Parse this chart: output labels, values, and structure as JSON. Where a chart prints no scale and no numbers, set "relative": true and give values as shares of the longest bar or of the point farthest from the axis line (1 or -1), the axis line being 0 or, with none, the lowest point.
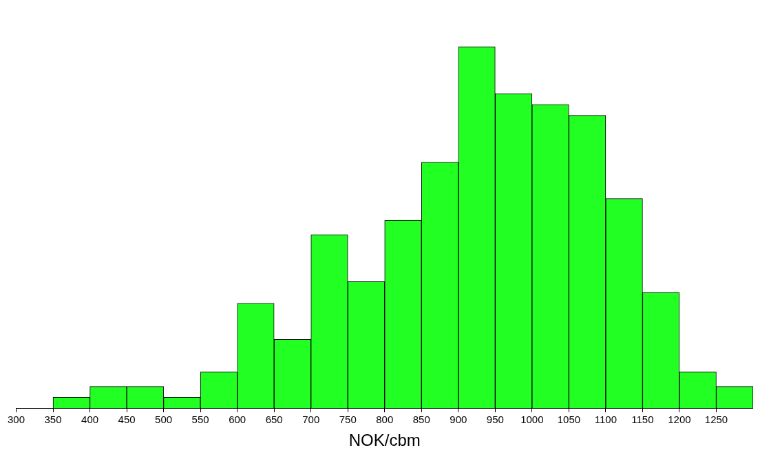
{
  "chart_data": {
    "type": "bar",
    "xlabel": "NOK/cbm",
    "relative": true,
    "color": "#22ff22",
    "x": [
      375,
      425,
      475,
      525,
      575,
      625,
      675,
      725,
      775,
      825,
      875,
      925,
      975,
      1025,
      1075,
      1125,
      1175,
      1225,
      1275
    ],
    "values": [
      0.03,
      0.06,
      0.06,
      0.03,
      0.1,
      0.29,
      0.19,
      0.48,
      0.35,
      0.52,
      0.68,
      1,
      0.87,
      0.84,
      0.81,
      0.58,
      0.32,
      0.1,
      0.06
    ],
    "xlim": [
      300,
      1300
    ],
    "xticks": [
      300,
      350,
      400,
      450,
      500,
      550,
      600,
      650,
      700,
      750,
      800,
      850,
      900,
      950,
      1000,
      1050,
      1100,
      1150,
      1200,
      1250
    ]
  }
}
